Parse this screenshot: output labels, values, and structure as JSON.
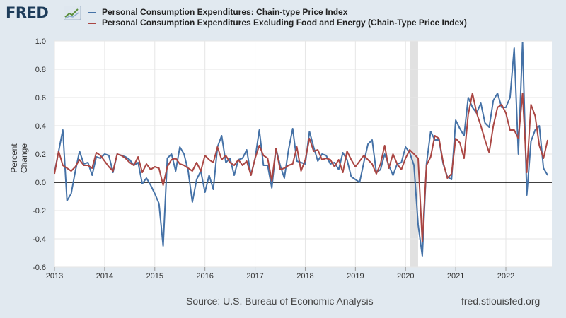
{
  "branding": {
    "logo_text": "FRED",
    "logo_icon": "chart-trend-icon"
  },
  "source_text": "Source: U.S. Bureau of Economic Analysis",
  "site_text": "fred.stlouisfed.org",
  "chart_data": {
    "type": "line",
    "title": "",
    "xlabel": "",
    "ylabel": "Percent Change",
    "ylim": [
      -0.6,
      1.0
    ],
    "yticks": [
      -0.6,
      -0.4,
      -0.2,
      0.0,
      0.2,
      0.4,
      0.6,
      0.8,
      1.0
    ],
    "ytick_labels": [
      "-0.6",
      "-0.4",
      "-0.2",
      "0.0",
      "0.2",
      "0.4",
      "0.6",
      "0.8",
      "1.0"
    ],
    "xlim": [
      "2013-01",
      "2022-12"
    ],
    "xticks": [
      "2013",
      "2014",
      "2015",
      "2016",
      "2017",
      "2018",
      "2019",
      "2020",
      "2021",
      "2022"
    ],
    "grid": true,
    "legend_position": "top",
    "recession_shading": [
      "2020-02",
      "2020-04"
    ],
    "colors": {
      "pce": "#4572a7",
      "core": "#aa4643",
      "zero_line": "#000000",
      "recession": "#e1e1e1"
    },
    "series": [
      {
        "name": "Personal Consumption Expenditures: Chain-type Price Index",
        "color": "#4572a7",
        "start": "2013-01",
        "values": [
          0.07,
          0.22,
          0.37,
          -0.13,
          -0.08,
          0.08,
          0.22,
          0.13,
          0.14,
          0.05,
          0.18,
          0.17,
          0.2,
          0.19,
          0.07,
          0.2,
          0.19,
          0.18,
          0.16,
          0.12,
          0.14,
          -0.01,
          0.03,
          -0.02,
          -0.08,
          -0.15,
          -0.45,
          0.17,
          0.2,
          0.08,
          0.25,
          0.2,
          0.08,
          -0.14,
          0.02,
          0.08,
          -0.07,
          0.05,
          -0.05,
          0.25,
          0.33,
          0.14,
          0.17,
          0.05,
          0.16,
          0.17,
          0.23,
          0.05,
          0.17,
          0.37,
          0.12,
          0.12,
          -0.04,
          0.24,
          0.12,
          0.03,
          0.23,
          0.38,
          0.15,
          0.14,
          0.13,
          0.36,
          0.25,
          0.15,
          0.2,
          0.19,
          0.13,
          0.14,
          0.09,
          0.21,
          0.16,
          0.04,
          0.02,
          0.0,
          0.14,
          0.27,
          0.3,
          0.07,
          0.09,
          0.2,
          0.12,
          0.05,
          0.13,
          0.14,
          0.25,
          0.21,
          0.12,
          -0.3,
          -0.52,
          0.13,
          0.36,
          0.3,
          0.3,
          0.13,
          0.04,
          0.02,
          0.44,
          0.38,
          0.33,
          0.6,
          0.53,
          0.49,
          0.56,
          0.42,
          0.39,
          0.58,
          0.63,
          0.53,
          0.53,
          0.6,
          0.95,
          0.2,
          0.99,
          -0.09,
          0.29,
          0.37,
          0.4,
          0.1,
          0.05
        ]
      },
      {
        "name": "Personal Consumption Expenditures Excluding Food and Energy (Chain-Type Price Index)",
        "color": "#aa4643",
        "start": "2013-01",
        "values": [
          0.06,
          0.22,
          0.12,
          0.1,
          0.08,
          0.11,
          0.16,
          0.12,
          0.12,
          0.1,
          0.21,
          0.19,
          0.15,
          0.11,
          0.08,
          0.2,
          0.19,
          0.17,
          0.14,
          0.12,
          0.18,
          0.07,
          0.13,
          0.09,
          0.11,
          0.1,
          -0.02,
          0.11,
          0.16,
          0.17,
          0.13,
          0.12,
          0.1,
          0.08,
          0.14,
          0.08,
          0.19,
          0.16,
          0.14,
          0.25,
          0.16,
          0.19,
          0.14,
          0.12,
          0.16,
          0.12,
          0.15,
          0.05,
          0.17,
          0.26,
          0.19,
          0.17,
          0.01,
          0.24,
          0.09,
          0.1,
          0.12,
          0.13,
          0.25,
          0.08,
          0.16,
          0.31,
          0.22,
          0.23,
          0.16,
          0.17,
          0.16,
          0.11,
          0.16,
          0.07,
          0.22,
          0.16,
          0.11,
          0.15,
          0.19,
          0.16,
          0.13,
          0.06,
          0.13,
          0.26,
          0.1,
          0.2,
          0.13,
          0.09,
          0.17,
          0.23,
          0.2,
          0.17,
          -0.42,
          0.12,
          0.18,
          0.33,
          0.31,
          0.14,
          0.03,
          0.06,
          0.31,
          0.28,
          0.17,
          0.48,
          0.63,
          0.49,
          0.4,
          0.3,
          0.21,
          0.4,
          0.53,
          0.55,
          0.49,
          0.37,
          0.37,
          0.31,
          0.63,
          0.07,
          0.55,
          0.47,
          0.26,
          0.17,
          0.3
        ]
      }
    ]
  }
}
